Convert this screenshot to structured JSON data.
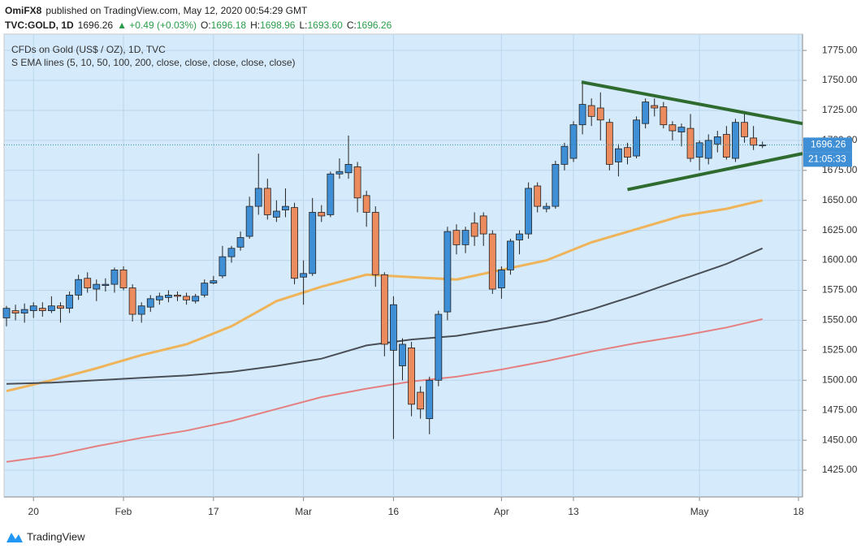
{
  "header": {
    "author": "OmiFX8",
    "published": "published on TradingView.com, May 12, 2020 00:54:29 GMT",
    "symbol": "TVC:GOLD, 1D",
    "last": "1696.26",
    "change": "▲ +0.49 (+0.03%)",
    "ohlc": [
      {
        "label": "O:",
        "value": "1696.18"
      },
      {
        "label": "H:",
        "value": "1698.96"
      },
      {
        "label": "L:",
        "value": "1693.60"
      },
      {
        "label": "C:",
        "value": "1696.26"
      }
    ]
  },
  "chart_data": {
    "type": "candlestick",
    "legend": [
      "CFDs on Gold (US$ / OZ), 1D, TVC",
      "S EMA lines (5, 10, 50, 100, 200, close, close, close, close, close)"
    ],
    "open": [
      1552,
      1558,
      1556,
      1558,
      1560,
      1558,
      1562,
      1560,
      1571,
      1585,
      1576,
      1579,
      1580,
      1592,
      1577,
      1555,
      1561,
      1567,
      1569,
      1571,
      1570,
      1566,
      1571,
      1581,
      1587,
      1603,
      1611,
      1620,
      1645,
      1660,
      1636,
      1642,
      1644,
      1586,
      1589,
      1640,
      1638,
      1672,
      1673,
      1678,
      1654,
      1640,
      1588,
      1525,
      1512,
      1527,
      1490,
      1468,
      1500,
      1557,
      1625,
      1613,
      1631,
      1637,
      1622,
      1577,
      1592,
      1617,
      1622,
      1662,
      1643,
      1645,
      1680,
      1685,
      1713,
      1729,
      1727,
      1715,
      1682,
      1694,
      1687,
      1714,
      1729,
      1728,
      1713,
      1707,
      1710,
      1686,
      1685,
      1697,
      1705,
      1685,
      1715,
      1702,
      1696.18
    ],
    "high": [
      1562,
      1563,
      1564,
      1565,
      1565,
      1570,
      1565,
      1574,
      1588,
      1590,
      1584,
      1585,
      1594,
      1595,
      1580,
      1565,
      1571,
      1573,
      1575,
      1574,
      1573,
      1572,
      1584,
      1587,
      1612,
      1612,
      1624,
      1653,
      1689,
      1668,
      1650,
      1660,
      1648,
      1600,
      1652,
      1646,
      1674,
      1685,
      1704,
      1682,
      1658,
      1645,
      1590,
      1570,
      1535,
      1532,
      1495,
      1503,
      1558,
      1628,
      1630,
      1628,
      1640,
      1640,
      1625,
      1595,
      1618,
      1625,
      1665,
      1665,
      1648,
      1683,
      1698,
      1716,
      1748,
      1735,
      1740,
      1718,
      1697,
      1698,
      1720,
      1735,
      1735,
      1732,
      1716,
      1714,
      1722,
      1700,
      1705,
      1708,
      1712,
      1718,
      1722,
      1712,
      1698.96
    ],
    "low": [
      1545,
      1550,
      1548,
      1552,
      1553,
      1556,
      1548,
      1556,
      1567,
      1573,
      1566,
      1574,
      1573,
      1575,
      1549,
      1548,
      1557,
      1563,
      1565,
      1566,
      1563,
      1564,
      1569,
      1580,
      1585,
      1598,
      1608,
      1618,
      1638,
      1634,
      1632,
      1636,
      1580,
      1563,
      1587,
      1632,
      1636,
      1668,
      1668,
      1640,
      1628,
      1578,
      1520,
      1451,
      1500,
      1470,
      1468,
      1455,
      1495,
      1550,
      1605,
      1606,
      1612,
      1612,
      1572,
      1568,
      1588,
      1605,
      1618,
      1640,
      1640,
      1643,
      1675,
      1682,
      1705,
      1712,
      1700,
      1675,
      1670,
      1680,
      1685,
      1710,
      1720,
      1710,
      1700,
      1695,
      1682,
      1675,
      1680,
      1690,
      1684,
      1682,
      1698,
      1692,
      1693.6
    ],
    "close": [
      1560,
      1556,
      1559,
      1562,
      1558,
      1562,
      1560,
      1571,
      1584,
      1577,
      1580,
      1580,
      1592,
      1577,
      1555,
      1562,
      1568,
      1570,
      1571,
      1570,
      1567,
      1570,
      1581,
      1583,
      1603,
      1610,
      1619,
      1645,
      1660,
      1638,
      1641,
      1645,
      1585,
      1589,
      1640,
      1637,
      1672,
      1674,
      1680,
      1652,
      1640,
      1588,
      1530,
      1563,
      1530,
      1480,
      1476,
      1500,
      1555,
      1624,
      1613,
      1625,
      1620,
      1622,
      1576,
      1592,
      1616,
      1622,
      1660,
      1645,
      1645,
      1680,
      1695,
      1713,
      1730,
      1720,
      1717,
      1680,
      1693,
      1686,
      1717,
      1732,
      1727,
      1713,
      1708,
      1711,
      1685,
      1698,
      1700,
      1703,
      1686,
      1715,
      1703,
      1696,
      1696.26
    ],
    "up_color": "#3f8fd6",
    "down_color": "#ec8b5e",
    "ema_x": [
      0,
      5,
      10,
      15,
      20,
      25,
      30,
      35,
      40,
      45,
      50,
      55,
      60,
      65,
      70,
      75,
      80,
      84
    ],
    "ema_lines": [
      {
        "color": "#efb45a",
        "values": [
          1491,
          1500,
          1510,
          1521,
          1530,
          1545,
          1566,
          1578,
          1588,
          1586,
          1584,
          1592,
          1600,
          1615,
          1626,
          1637,
          1643,
          1650
        ]
      },
      {
        "color": "#4a4f57",
        "values": [
          1497,
          1498,
          1500,
          1502,
          1504,
          1507,
          1512,
          1518,
          1529,
          1534,
          1537,
          1543,
          1549,
          1559,
          1571,
          1584,
          1597,
          1610
        ]
      },
      {
        "color": "#e58080",
        "values": [
          1432,
          1437,
          1445,
          1452,
          1458,
          1466,
          1476,
          1486,
          1493,
          1499,
          1503,
          1509,
          1516,
          1524,
          1531,
          1537,
          1544,
          1551
        ]
      }
    ],
    "trendlines": [
      {
        "color": "#2f6b2f",
        "x": [
          63.9,
          88.45
        ],
        "values": [
          1748.6,
          1714
        ]
      },
      {
        "color": "#2f6b2f",
        "x": [
          69,
          88.45
        ],
        "values": [
          1659,
          1689
        ]
      }
    ],
    "countdown": "21:05:33",
    "xlim": [
      -0.27,
      88.45
    ],
    "xticks": [
      {
        "value": 3,
        "label": "20"
      },
      {
        "value": 13,
        "label": "Feb"
      },
      {
        "value": 23,
        "label": "17"
      },
      {
        "value": 33,
        "label": "Mar"
      },
      {
        "value": 43,
        "label": "16"
      },
      {
        "value": 55,
        "label": "Apr"
      },
      {
        "value": 63,
        "label": "13"
      },
      {
        "value": 77,
        "label": "May"
      },
      {
        "value": 88,
        "label": "18"
      }
    ],
    "ylim": [
      1402.7,
      1788.6
    ],
    "yticks": [
      {
        "value": 1425,
        "label": "1425.00"
      },
      {
        "value": 1450,
        "label": "1450.00"
      },
      {
        "value": 1475,
        "label": "1475.00"
      },
      {
        "value": 1500,
        "label": "1500.00"
      },
      {
        "value": 1525,
        "label": "1525.00"
      },
      {
        "value": 1550,
        "label": "1550.00"
      },
      {
        "value": 1575,
        "label": "1575.00"
      },
      {
        "value": 1600,
        "label": "1600.00"
      },
      {
        "value": 1625,
        "label": "1625.00"
      },
      {
        "value": 1650,
        "label": "1650.00"
      },
      {
        "value": 1675,
        "label": "1675.00"
      },
      {
        "value": 1700,
        "label": "1700.00"
      },
      {
        "value": 1725,
        "label": "1725.00"
      },
      {
        "value": 1750,
        "label": "1750.00"
      },
      {
        "value": 1775,
        "label": "1775.00"
      }
    ],
    "grid": true
  },
  "footer": {
    "brand": "TradingView"
  }
}
